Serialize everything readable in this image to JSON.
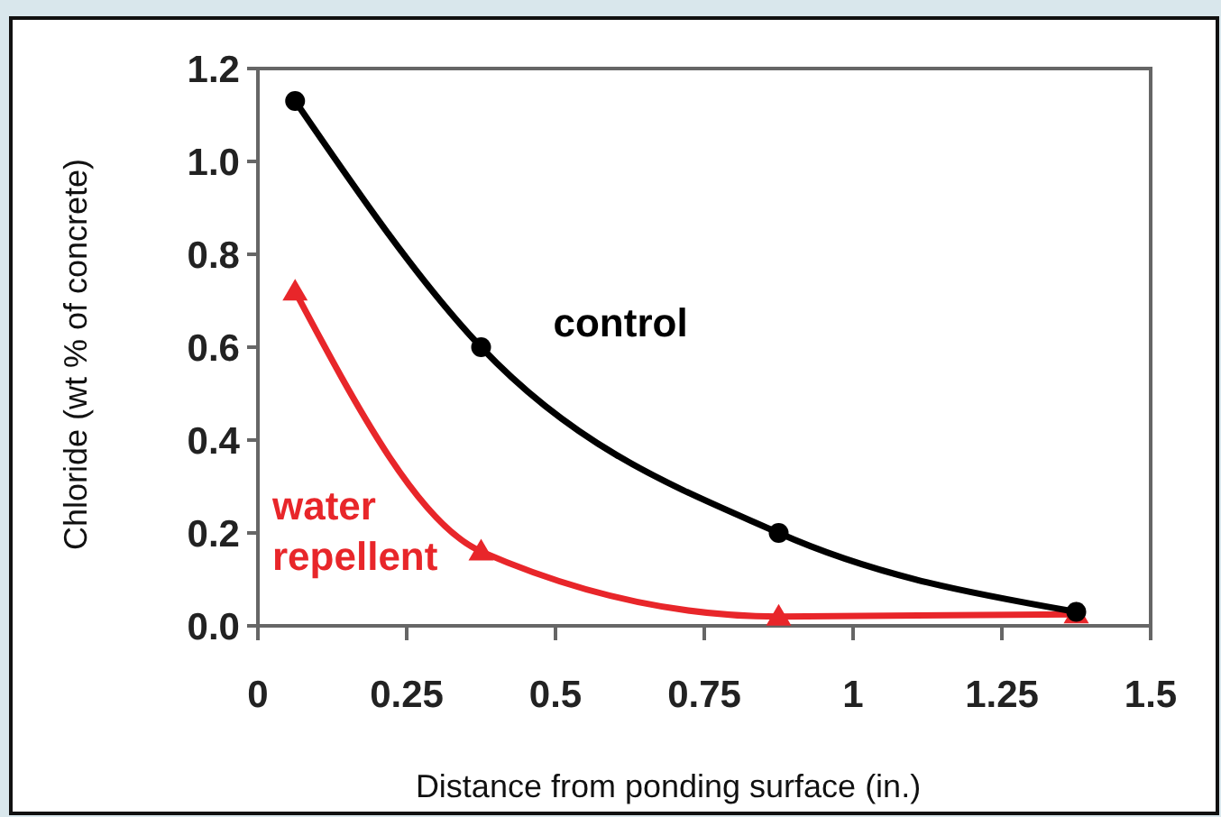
{
  "chart_data": {
    "type": "line",
    "xlabel": "Distance from ponding surface (in.)",
    "ylabel": "Chloride (wt % of concrete)",
    "x": [
      0.0625,
      0.375,
      0.875,
      1.375
    ],
    "series": [
      {
        "name": "control",
        "color": "#000000",
        "marker": "circle",
        "values": [
          1.13,
          0.6,
          0.2,
          0.03
        ]
      },
      {
        "name": "water repellent",
        "color": "#e8262a",
        "marker": "triangle",
        "values": [
          0.72,
          0.16,
          0.02,
          0.025
        ]
      }
    ],
    "xlim": [
      0,
      1.5
    ],
    "xticks": [
      0,
      0.25,
      0.5,
      0.75,
      1,
      1.25,
      1.5
    ],
    "ylim": [
      0,
      1.2
    ],
    "yticks": [
      {
        "value": 0,
        "label": "0.0"
      },
      {
        "value": 0.2,
        "label": "0.2"
      },
      {
        "value": 0.4,
        "label": "0.4"
      },
      {
        "value": 0.6,
        "label": "0.6"
      },
      {
        "value": 0.8,
        "label": "0.8"
      },
      {
        "value": 1,
        "label": "1.0"
      },
      {
        "value": 1.2,
        "label": "1.2"
      }
    ],
    "grid": false,
    "line_style": "solid"
  }
}
